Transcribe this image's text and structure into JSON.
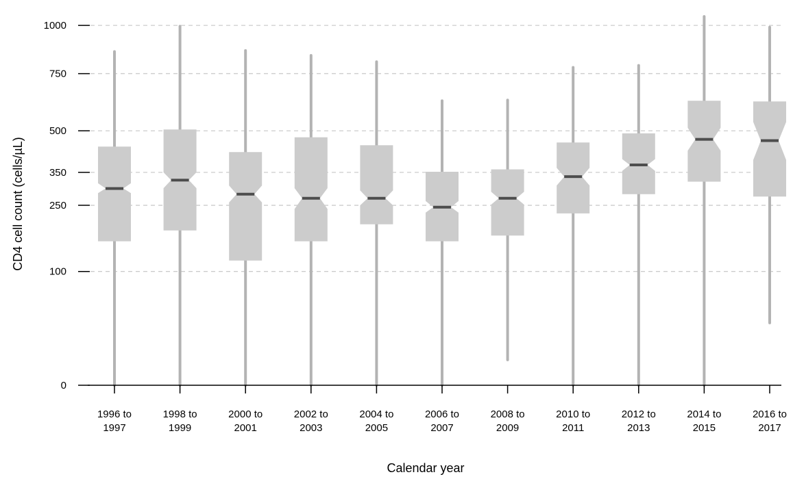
{
  "colors": {
    "box_fill": "#cccccc",
    "whisker": "#b3b3b3",
    "median": "#4d4d4d",
    "grid": "#cccccc",
    "axis": "#000000"
  },
  "chart_data": {
    "type": "box",
    "title": "",
    "xlabel": "Calendar year",
    "ylabel": "CD4 cell count (cells/µL)",
    "y_scale": "sqrt",
    "ylim": [
      0,
      1050
    ],
    "yticks": [
      0,
      100,
      250,
      350,
      500,
      750,
      1000
    ],
    "grid": "horizontal dashed",
    "notched": true,
    "categories": [
      [
        "1996 to",
        "1997"
      ],
      [
        "1998 to",
        "1999"
      ],
      [
        "2000 to",
        "2001"
      ],
      [
        "2002 to",
        "2003"
      ],
      [
        "2004 to",
        "2005"
      ],
      [
        "2006 to",
        "2007"
      ],
      [
        "2008 to",
        "2009"
      ],
      [
        "2010 to",
        "2011"
      ],
      [
        "2012 to",
        "2013"
      ],
      [
        "2014 to",
        "2015"
      ],
      [
        "2016 to",
        "2017"
      ]
    ],
    "boxes": [
      {
        "whisker_low": 0,
        "q1": 160,
        "median": 299,
        "q3": 440,
        "whisker_high": 860,
        "notch_low": 285,
        "notch_high": 315
      },
      {
        "whisker_low": 0,
        "q1": 185,
        "median": 325,
        "q3": 505,
        "whisker_high": 995,
        "notch_low": 300,
        "notch_high": 350
      },
      {
        "whisker_low": 0,
        "q1": 120,
        "median": 282,
        "q3": 420,
        "whisker_high": 865,
        "notch_low": 258,
        "notch_high": 308
      },
      {
        "whisker_low": 0,
        "q1": 160,
        "median": 270,
        "q3": 475,
        "whisker_high": 840,
        "notch_low": 240,
        "notch_high": 300
      },
      {
        "whisker_low": 0,
        "q1": 200,
        "median": 270,
        "q3": 445,
        "whisker_high": 808,
        "notch_low": 250,
        "notch_high": 293
      },
      {
        "whisker_low": 0,
        "q1": 160,
        "median": 245,
        "q3": 352,
        "whisker_high": 625,
        "notch_low": 230,
        "notch_high": 262
      },
      {
        "whisker_low": 5,
        "q1": 173,
        "median": 270,
        "q3": 360,
        "whisker_high": 628,
        "notch_low": 252,
        "notch_high": 289
      },
      {
        "whisker_low": 0,
        "q1": 228,
        "median": 336,
        "q3": 455,
        "whisker_high": 780,
        "notch_low": 308,
        "notch_high": 365
      },
      {
        "whisker_low": 0,
        "q1": 282,
        "median": 375,
        "q3": 490,
        "whisker_high": 790,
        "notch_low": 355,
        "notch_high": 395
      },
      {
        "whisker_low": 0,
        "q1": 320,
        "median": 467,
        "q3": 625,
        "whisker_high": 1050,
        "notch_low": 425,
        "notch_high": 512
      },
      {
        "whisker_low": 30,
        "q1": 275,
        "median": 462,
        "q3": 622,
        "whisker_high": 990,
        "notch_low": 392,
        "notch_high": 535
      }
    ]
  }
}
